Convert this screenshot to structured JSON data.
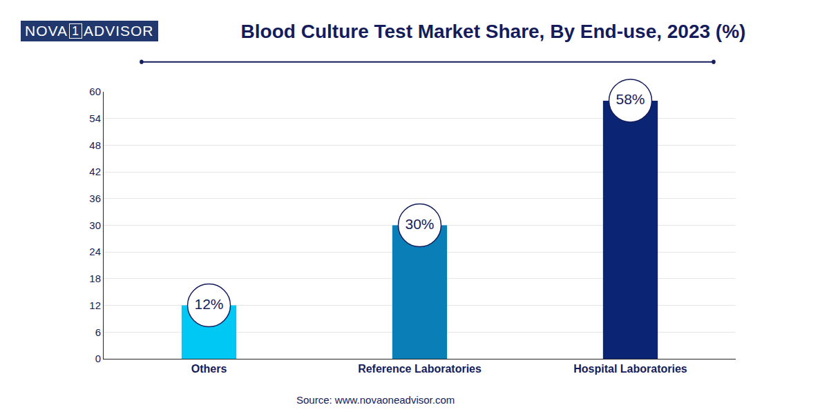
{
  "chart_data": {
    "type": "bar",
    "title": "Blood Culture Test Market Share, By End-use, 2023 (%)",
    "logo": [
      "NOVA",
      "1",
      "ADVISOR"
    ],
    "source": "Source: www.novaoneadvisor.com",
    "categories": [
      "Others",
      "Reference Laboratories",
      "Hospital Laboratories"
    ],
    "values": [
      12,
      30,
      58
    ],
    "value_labels": [
      "12%",
      "30%",
      "58%"
    ],
    "colors": [
      "#00c8f5",
      "#0a7eb6",
      "#0b2473"
    ],
    "ylim": [
      0,
      60
    ],
    "yticks": [
      0,
      6,
      12,
      18,
      24,
      30,
      36,
      42,
      48,
      54,
      60
    ],
    "grid": true,
    "data_labels": true
  }
}
